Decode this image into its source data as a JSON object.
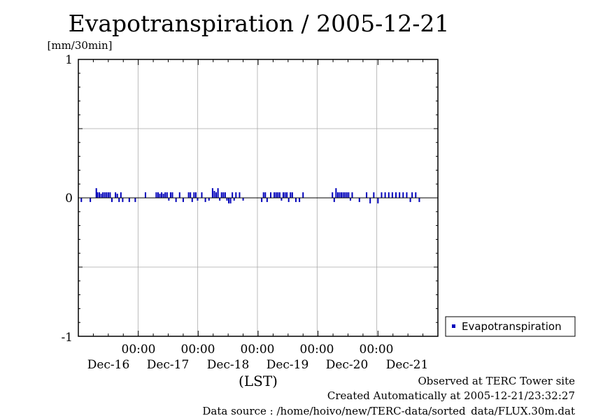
{
  "chart_data": {
    "type": "bar",
    "title": "Evapotranspiration / 2005-12-21",
    "ylabel": "[mm/30min]",
    "xlabel": "(LST)",
    "ylim": [
      -1,
      1
    ],
    "y_ticks": [
      "1",
      "0",
      "-1"
    ],
    "x_time_labels": [
      "00:00",
      "00:00",
      "00:00",
      "00:00",
      "00:00"
    ],
    "x_date_labels": [
      "Dec-16",
      "Dec-17",
      "Dec-18",
      "Dec-19",
      "Dec-20",
      "Dec-21"
    ],
    "x_range_days": [
      0,
      6
    ],
    "grid": true,
    "legend": "right",
    "series": [
      {
        "name": "Evapotranspiration",
        "color": "#0000bb",
        "x_days": [
          0.05,
          0.2,
          0.3,
          0.32,
          0.35,
          0.38,
          0.41,
          0.44,
          0.47,
          0.5,
          0.53,
          0.56,
          0.62,
          0.65,
          0.68,
          0.71,
          0.74,
          0.85,
          0.95,
          1.12,
          1.3,
          1.33,
          1.36,
          1.39,
          1.42,
          1.45,
          1.48,
          1.51,
          1.54,
          1.57,
          1.63,
          1.69,
          1.75,
          1.84,
          1.87,
          1.9,
          1.93,
          1.96,
          1.99,
          2.06,
          2.12,
          2.18,
          2.24,
          2.27,
          2.3,
          2.33,
          2.36,
          2.39,
          2.42,
          2.45,
          2.48,
          2.51,
          2.54,
          2.57,
          2.6,
          2.63,
          2.69,
          2.75,
          3.06,
          3.09,
          3.12,
          3.15,
          3.21,
          3.27,
          3.3,
          3.33,
          3.36,
          3.39,
          3.42,
          3.45,
          3.48,
          3.51,
          3.54,
          3.57,
          3.63,
          3.69,
          3.75,
          4.24,
          4.27,
          4.3,
          4.33,
          4.36,
          4.39,
          4.42,
          4.45,
          4.48,
          4.51,
          4.54,
          4.57,
          4.69,
          4.81,
          4.87,
          4.93,
          5.0,
          5.06,
          5.12,
          5.18,
          5.24,
          5.3,
          5.36,
          5.42,
          5.48,
          5.54,
          5.57,
          5.63,
          5.69
        ],
        "values": [
          -0.03,
          -0.03,
          0.07,
          0.04,
          0.04,
          0.03,
          0.04,
          0.04,
          0.04,
          0.04,
          0.04,
          -0.03,
          0.04,
          0.03,
          -0.03,
          0.04,
          -0.03,
          -0.03,
          -0.03,
          0.04,
          0.04,
          0.04,
          0.03,
          0.04,
          0.03,
          0.04,
          0.04,
          -0.02,
          0.04,
          0.04,
          -0.03,
          0.04,
          -0.03,
          0.04,
          0.04,
          -0.03,
          0.04,
          0.04,
          -0.02,
          0.04,
          -0.03,
          -0.02,
          0.07,
          0.05,
          0.04,
          0.07,
          -0.02,
          0.04,
          0.04,
          0.04,
          -0.02,
          -0.04,
          -0.04,
          0.04,
          -0.02,
          0.04,
          0.04,
          -0.02,
          -0.03,
          0.04,
          0.04,
          -0.03,
          0.04,
          0.04,
          0.04,
          0.04,
          0.04,
          -0.02,
          0.04,
          0.04,
          0.04,
          -0.03,
          0.04,
          0.04,
          -0.03,
          -0.03,
          0.04,
          0.04,
          -0.03,
          0.07,
          0.04,
          0.04,
          0.04,
          0.04,
          0.04,
          0.04,
          0.04,
          -0.02,
          0.04,
          -0.03,
          0.04,
          -0.04,
          0.04,
          -0.04,
          0.04,
          0.04,
          0.04,
          0.04,
          0.04,
          0.04,
          0.04,
          0.04,
          -0.03,
          0.04,
          0.04,
          -0.03
        ]
      }
    ]
  },
  "footer": {
    "observed": "Observed at TERC Tower site",
    "created": "Created Automatically at 2005-12-21/23:32:27",
    "source": "Data source : /home/hoivo/new/TERC-data/sorted_data/FLUX.30m.dat"
  }
}
